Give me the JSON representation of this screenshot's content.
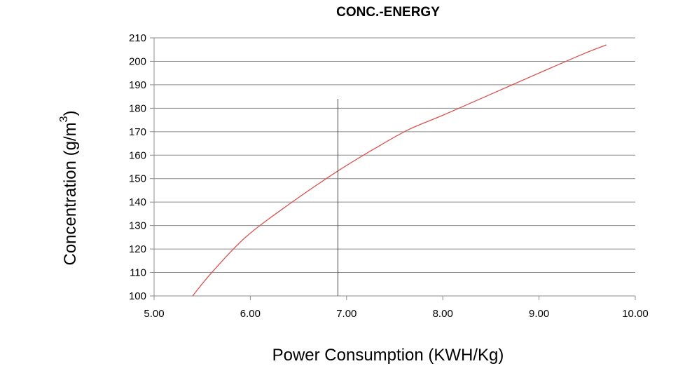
{
  "chart_data": {
    "type": "line",
    "title": "CONC.-ENERGY",
    "xlabel": "Power Consumption (KWH/Kg)",
    "ylabel_main": "Concentration (g/m",
    "ylabel_sup": "3",
    "ylabel_close": ")",
    "xlim": [
      5.0,
      10.0
    ],
    "ylim": [
      100,
      210
    ],
    "x_ticks": [
      5.0,
      6.0,
      7.0,
      8.0,
      9.0,
      10.0
    ],
    "x_tick_labels": [
      "5.00",
      "6.00",
      "7.00",
      "8.00",
      "9.00",
      "10.00"
    ],
    "y_ticks": [
      100,
      110,
      120,
      130,
      140,
      150,
      160,
      170,
      180,
      190,
      200,
      210
    ],
    "y_tick_labels": [
      "100",
      "110",
      "120",
      "130",
      "140",
      "150",
      "160",
      "170",
      "180",
      "190",
      "200",
      "210"
    ],
    "grid": true,
    "series": [
      {
        "color": "#d9534f",
        "x": [
          5.4,
          5.6,
          5.95,
          6.4,
          6.9,
          7.3,
          7.65,
          8.0,
          8.5,
          9.0,
          9.45,
          9.7
        ],
        "y": [
          100,
          110,
          125,
          139,
          153,
          163,
          171,
          177,
          186,
          195,
          203,
          207
        ]
      }
    ],
    "vertical_marker": {
      "x": 6.91,
      "y_top": 184
    }
  }
}
